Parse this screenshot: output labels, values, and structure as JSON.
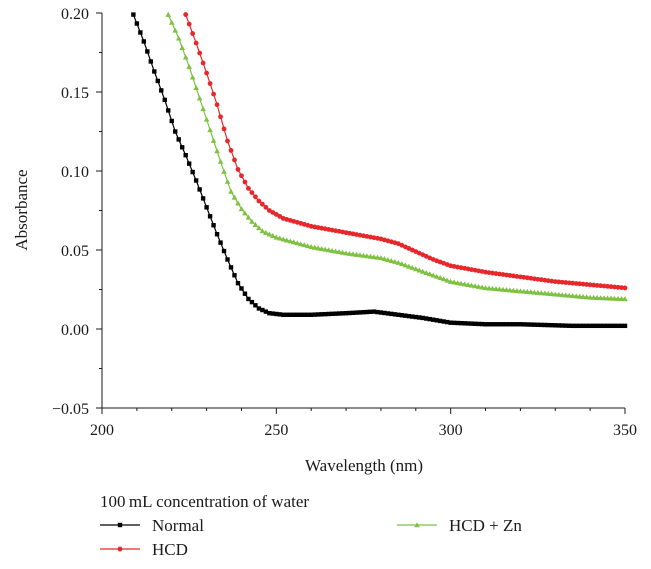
{
  "chart_data": {
    "type": "line",
    "title": "",
    "xlabel": "Wavelength (nm)",
    "ylabel": "Absorbance",
    "xlim": [
      200,
      350
    ],
    "ylim": [
      -0.05,
      0.2
    ],
    "x_ticks": [
      200,
      250,
      300,
      350
    ],
    "x_tick_labels": [
      "200",
      "250",
      "300",
      "350"
    ],
    "y_ticks": [
      -0.05,
      0.0,
      0.05,
      0.1,
      0.15,
      0.2
    ],
    "y_tick_labels": [
      "−0.05",
      "0.00",
      "0.05",
      "0.10",
      "0.15",
      "0.20"
    ],
    "grid": false,
    "legend_title": "100 mL concentration of water",
    "legend_placement": "bottom",
    "series": [
      {
        "name": "Normal",
        "color": "#000000",
        "marker": "square",
        "points": [
          [
            209,
            0.199
          ],
          [
            212,
            0.182
          ],
          [
            215,
            0.163
          ],
          [
            218,
            0.145
          ],
          [
            221,
            0.125
          ],
          [
            224,
            0.11
          ],
          [
            227,
            0.094
          ],
          [
            230,
            0.077
          ],
          [
            233,
            0.06
          ],
          [
            236,
            0.044
          ],
          [
            239,
            0.029
          ],
          [
            242,
            0.019
          ],
          [
            245,
            0.013
          ],
          [
            248,
            0.01
          ],
          [
            252,
            0.009
          ],
          [
            260,
            0.009
          ],
          [
            270,
            0.01
          ],
          [
            278,
            0.011
          ],
          [
            285,
            0.009
          ],
          [
            292,
            0.007
          ],
          [
            300,
            0.004
          ],
          [
            310,
            0.003
          ],
          [
            320,
            0.003
          ],
          [
            335,
            0.002
          ],
          [
            350,
            0.002
          ]
        ]
      },
      {
        "name": "HCD",
        "color": "#e8272a",
        "marker": "circle",
        "points": [
          [
            224,
            0.199
          ],
          [
            227,
            0.181
          ],
          [
            230,
            0.162
          ],
          [
            233,
            0.142
          ],
          [
            236,
            0.119
          ],
          [
            239,
            0.101
          ],
          [
            242,
            0.089
          ],
          [
            245,
            0.081
          ],
          [
            248,
            0.075
          ],
          [
            252,
            0.07
          ],
          [
            260,
            0.065
          ],
          [
            270,
            0.061
          ],
          [
            280,
            0.057
          ],
          [
            285,
            0.054
          ],
          [
            290,
            0.049
          ],
          [
            295,
            0.044
          ],
          [
            300,
            0.04
          ],
          [
            310,
            0.036
          ],
          [
            320,
            0.033
          ],
          [
            330,
            0.03
          ],
          [
            340,
            0.028
          ],
          [
            350,
            0.026
          ]
        ]
      },
      {
        "name": "HCD + Zn",
        "color": "#7dc242",
        "marker": "triangle",
        "points": [
          [
            219,
            0.199
          ],
          [
            222,
            0.184
          ],
          [
            225,
            0.166
          ],
          [
            228,
            0.146
          ],
          [
            231,
            0.126
          ],
          [
            234,
            0.106
          ],
          [
            237,
            0.087
          ],
          [
            240,
            0.076
          ],
          [
            243,
            0.068
          ],
          [
            246,
            0.062
          ],
          [
            250,
            0.058
          ],
          [
            260,
            0.052
          ],
          [
            270,
            0.048
          ],
          [
            280,
            0.045
          ],
          [
            285,
            0.042
          ],
          [
            290,
            0.038
          ],
          [
            295,
            0.034
          ],
          [
            300,
            0.03
          ],
          [
            310,
            0.026
          ],
          [
            320,
            0.024
          ],
          [
            330,
            0.022
          ],
          [
            340,
            0.02
          ],
          [
            350,
            0.019
          ]
        ]
      }
    ]
  }
}
